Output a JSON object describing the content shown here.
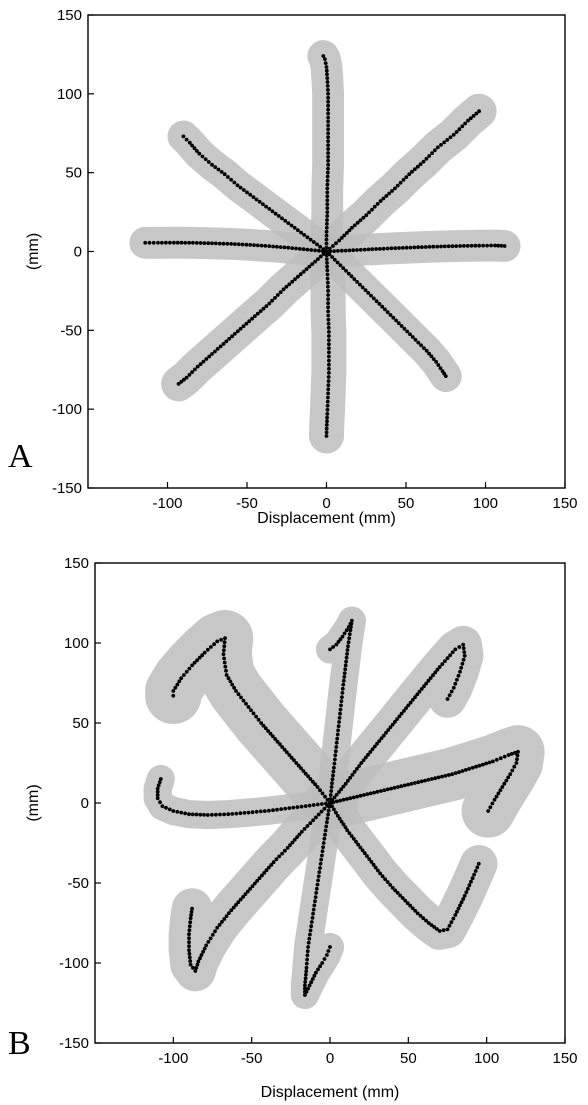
{
  "chart_data": [
    {
      "type": "scatter",
      "panel_label": "A",
      "xlabel": "Displacement (mm)",
      "ylabel": "(mm)",
      "xlim": [
        -150,
        150
      ],
      "ylim": [
        -150,
        150
      ],
      "xticks": [
        -100,
        -50,
        0,
        50,
        100,
        150
      ],
      "yticks": [
        150,
        100,
        50,
        0,
        -50,
        -100,
        -150
      ],
      "grid": false,
      "colors": {
        "trajectory": "#000000",
        "variability_band": "#bdbdbd"
      },
      "series": [
        {
          "band_width": 10,
          "points": [
            [
              0,
              0
            ],
            [
              0,
              10
            ],
            [
              0.5,
              25
            ],
            [
              0.5,
              40
            ],
            [
              1,
              55
            ],
            [
              1,
              70
            ],
            [
              1,
              85
            ],
            [
              1,
              100
            ],
            [
              0.5,
              110
            ],
            [
              0,
              117
            ],
            [
              -1,
              122
            ],
            [
              -2,
              124
            ]
          ]
        },
        {
          "band_width": 11,
          "points": [
            [
              0,
              0
            ],
            [
              8,
              7
            ],
            [
              16,
              15
            ],
            [
              25,
              23
            ],
            [
              34,
              32
            ],
            [
              43,
              40
            ],
            [
              52,
              49
            ],
            [
              61,
              57
            ],
            [
              70,
              66
            ],
            [
              80,
              74
            ],
            [
              89,
              83
            ],
            [
              96,
              89
            ]
          ]
        },
        {
          "band_width": 10,
          "points": [
            [
              0,
              0
            ],
            [
              12,
              0.6
            ],
            [
              24,
              1.2
            ],
            [
              36,
              1.8
            ],
            [
              48,
              2.3
            ],
            [
              60,
              2.8
            ],
            [
              72,
              3.2
            ],
            [
              84,
              3.5
            ],
            [
              96,
              3.7
            ],
            [
              106,
              3.8
            ],
            [
              112,
              3.5
            ]
          ]
        },
        {
          "band_width": 10,
          "points": [
            [
              0,
              0
            ],
            [
              7,
              -7
            ],
            [
              14,
              -14
            ],
            [
              21,
              -21
            ],
            [
              28,
              -28
            ],
            [
              35,
              -35
            ],
            [
              42,
              -42
            ],
            [
              49,
              -49
            ],
            [
              56,
              -56
            ],
            [
              63,
              -63
            ],
            [
              69,
              -70
            ],
            [
              73,
              -76
            ],
            [
              75,
              -79
            ]
          ]
        },
        {
          "band_width": 11,
          "points": [
            [
              0,
              0
            ],
            [
              0.5,
              -12
            ],
            [
              1,
              -25
            ],
            [
              1,
              -38
            ],
            [
              1.5,
              -51
            ],
            [
              1.5,
              -64
            ],
            [
              1.5,
              -77
            ],
            [
              1,
              -90
            ],
            [
              0.5,
              -103
            ],
            [
              0.2,
              -110
            ],
            [
              0,
              -117
            ]
          ]
        },
        {
          "band_width": 11,
          "points": [
            [
              0,
              0
            ],
            [
              -9,
              -8
            ],
            [
              -18,
              -16
            ],
            [
              -27,
              -24
            ],
            [
              -36,
              -33
            ],
            [
              -45,
              -41
            ],
            [
              -54,
              -49
            ],
            [
              -63,
              -57
            ],
            [
              -72,
              -65
            ],
            [
              -81,
              -73
            ],
            [
              -88,
              -80
            ],
            [
              -93,
              -84
            ]
          ]
        },
        {
          "band_width": 10,
          "points": [
            [
              0,
              0
            ],
            [
              -12,
              1.2
            ],
            [
              -24,
              2.4
            ],
            [
              -36,
              3.4
            ],
            [
              -48,
              4.2
            ],
            [
              -60,
              4.8
            ],
            [
              -72,
              5.2
            ],
            [
              -84,
              5.5
            ],
            [
              -96,
              5.6
            ],
            [
              -106,
              5.5
            ],
            [
              -114,
              5.5
            ]
          ]
        },
        {
          "band_width": 10,
          "points": [
            [
              0,
              0
            ],
            [
              -8,
              6
            ],
            [
              -16,
              12
            ],
            [
              -24,
              18
            ],
            [
              -32,
              24
            ],
            [
              -40,
              30
            ],
            [
              -48,
              36
            ],
            [
              -56,
              42
            ],
            [
              -64,
              49
            ],
            [
              -72,
              55
            ],
            [
              -80,
              62
            ],
            [
              -86,
              69
            ],
            [
              -90,
              73
            ]
          ]
        }
      ]
    },
    {
      "type": "scatter",
      "panel_label": "B",
      "xlabel": "Displacement (mm)",
      "ylabel": "(mm)",
      "xlim": [
        -150,
        150
      ],
      "ylim": [
        -150,
        150
      ],
      "xticks": [
        -100,
        -50,
        0,
        50,
        100,
        150
      ],
      "yticks": [
        150,
        100,
        50,
        0,
        -50,
        -100,
        -150
      ],
      "grid": false,
      "colors": {
        "trajectory": "#000000",
        "variability_band": "#bdbdbd"
      },
      "series": [
        {
          "band_width": 9,
          "points": [
            [
              0,
              0
            ],
            [
              1,
              10
            ],
            [
              2.5,
              22
            ],
            [
              4,
              35
            ],
            [
              5.5,
              48
            ],
            [
              7,
              61
            ],
            [
              8.5,
              74
            ],
            [
              10,
              86
            ],
            [
              11.5,
              98
            ],
            [
              13,
              108
            ],
            [
              14,
              114
            ],
            [
              12,
              110
            ],
            [
              8,
              104
            ],
            [
              4,
              99
            ],
            [
              0,
              96
            ]
          ]
        },
        {
          "band_width": 12,
          "points": [
            [
              0,
              0
            ],
            [
              10,
              12
            ],
            [
              20,
              25
            ],
            [
              30,
              37
            ],
            [
              40,
              49
            ],
            [
              50,
              61
            ],
            [
              60,
              73
            ],
            [
              70,
              85
            ],
            [
              80,
              96
            ],
            [
              85,
              99
            ],
            [
              86,
              92
            ],
            [
              83,
              82
            ],
            [
              79,
              72
            ],
            [
              75,
              65
            ]
          ]
        },
        {
          "band_width": 17,
          "points": [
            [
              0,
              0
            ],
            [
              13,
              3
            ],
            [
              26,
              6
            ],
            [
              39,
              9
            ],
            [
              52,
              12
            ],
            [
              65,
              15
            ],
            [
              78,
              18
            ],
            [
              91,
              22
            ],
            [
              104,
              26
            ],
            [
              114,
              30
            ],
            [
              120,
              32
            ],
            [
              119,
              25
            ],
            [
              115,
              18
            ],
            [
              110,
              10
            ],
            [
              105,
              2
            ],
            [
              101,
              -5
            ]
          ]
        },
        {
          "band_width": 12,
          "points": [
            [
              0,
              0
            ],
            [
              5,
              -8
            ],
            [
              11,
              -17
            ],
            [
              18,
              -26
            ],
            [
              25,
              -35
            ],
            [
              32,
              -44
            ],
            [
              40,
              -53
            ],
            [
              48,
              -61
            ],
            [
              56,
              -69
            ],
            [
              63,
              -75
            ],
            [
              70,
              -80
            ],
            [
              75,
              -79
            ],
            [
              80,
              -70
            ],
            [
              86,
              -58
            ],
            [
              91,
              -47
            ],
            [
              95,
              -38
            ]
          ]
        },
        {
          "band_width": 9,
          "points": [
            [
              0,
              0
            ],
            [
              -2,
              -12
            ],
            [
              -4,
              -25
            ],
            [
              -6,
              -38
            ],
            [
              -8,
              -51
            ],
            [
              -10,
              -64
            ],
            [
              -12,
              -77
            ],
            [
              -14,
              -90
            ],
            [
              -15,
              -103
            ],
            [
              -16,
              -114
            ],
            [
              -16,
              -120
            ],
            [
              -13,
              -114
            ],
            [
              -9,
              -106
            ],
            [
              -5,
              -100
            ],
            [
              -2,
              -95
            ],
            [
              0,
              -90
            ]
          ]
        },
        {
          "band_width": 13,
          "points": [
            [
              0,
              0
            ],
            [
              -9,
              -9
            ],
            [
              -18,
              -18
            ],
            [
              -27,
              -28
            ],
            [
              -36,
              -37
            ],
            [
              -45,
              -47
            ],
            [
              -54,
              -57
            ],
            [
              -63,
              -67
            ],
            [
              -72,
              -78
            ],
            [
              -79,
              -89
            ],
            [
              -84,
              -99
            ],
            [
              -86,
              -105
            ],
            [
              -89,
              -101
            ],
            [
              -90,
              -92
            ],
            [
              -90,
              -82
            ],
            [
              -89,
              -72
            ],
            [
              -88,
              -66
            ]
          ]
        },
        {
          "band_width": 9,
          "points": [
            [
              0,
              0
            ],
            [
              -13,
              -1.6
            ],
            [
              -26,
              -3.2
            ],
            [
              -39,
              -4.8
            ],
            [
              -52,
              -6
            ],
            [
              -65,
              -7
            ],
            [
              -78,
              -7.5
            ],
            [
              -90,
              -7
            ],
            [
              -100,
              -5
            ],
            [
              -107,
              -2
            ],
            [
              -110,
              3
            ],
            [
              -110,
              9
            ],
            [
              -108,
              15
            ]
          ]
        },
        {
          "band_width": 18,
          "points": [
            [
              0,
              0
            ],
            [
              -8,
              10
            ],
            [
              -17,
              20
            ],
            [
              -26,
              30
            ],
            [
              -35,
              40
            ],
            [
              -44,
              50
            ],
            [
              -52,
              60
            ],
            [
              -60,
              70
            ],
            [
              -66,
              80
            ],
            [
              -68,
              93
            ],
            [
              -67,
              103
            ],
            [
              -72,
              101
            ],
            [
              -80,
              94
            ],
            [
              -88,
              86
            ],
            [
              -95,
              78
            ],
            [
              -100,
              70
            ],
            [
              -100,
              67
            ]
          ]
        }
      ]
    }
  ]
}
